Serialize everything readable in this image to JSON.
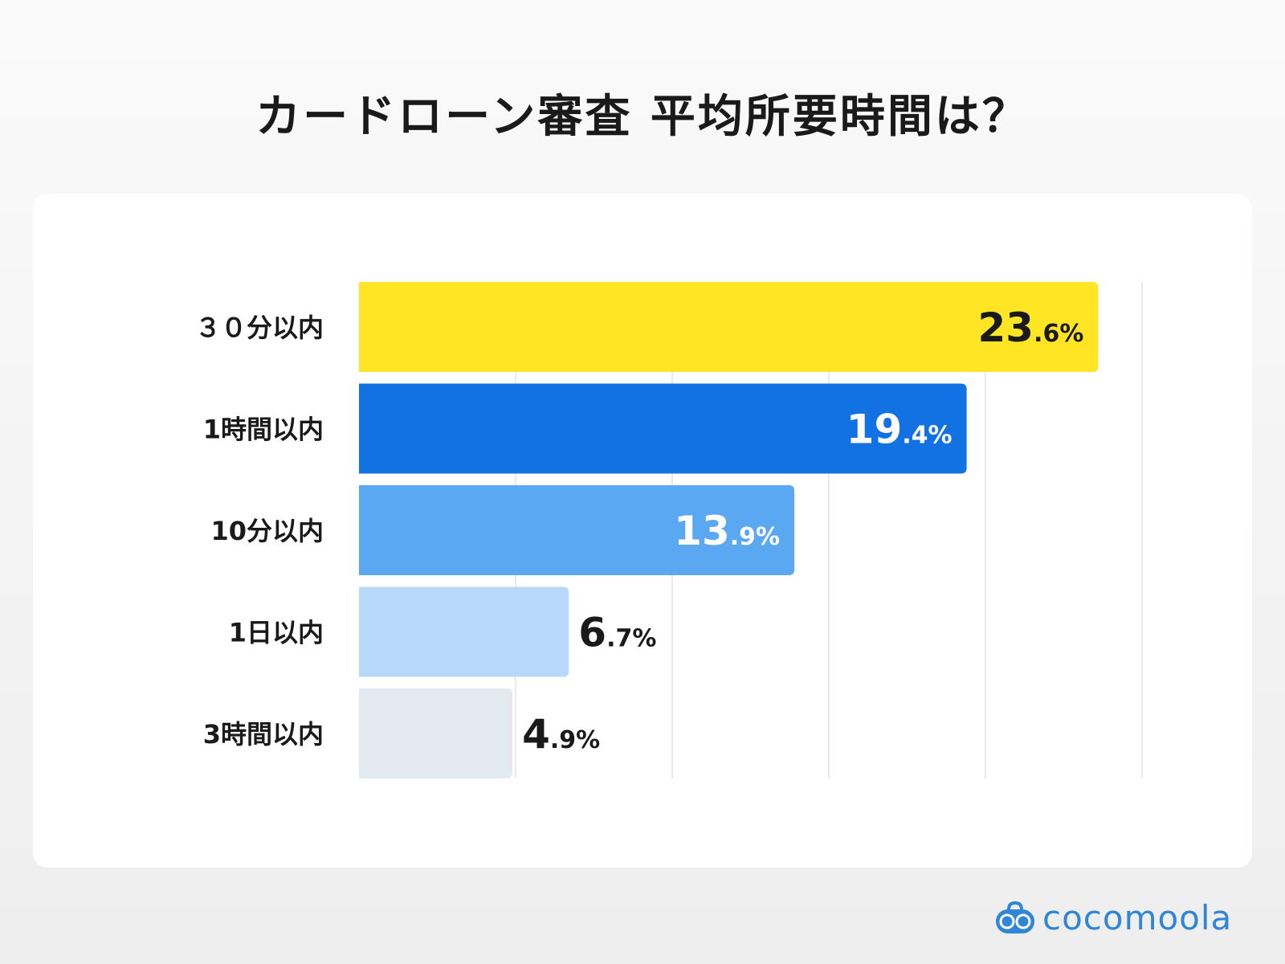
{
  "title": "カードローン審査 平均所要時間は？",
  "logo": {
    "text": "cocomoola",
    "icon": "robot-face-icon",
    "color": "#2f86d6"
  },
  "chart_data": {
    "type": "bar",
    "orientation": "horizontal",
    "title": "カードローン審査 平均所要時間は？",
    "categories": [
      "３０分以内",
      "1時間以内",
      "10分以内",
      "1日以内",
      "3時間以内"
    ],
    "values": [
      23.6,
      19.4,
      13.9,
      6.7,
      4.9
    ],
    "value_labels": [
      {
        "int": "23",
        "dec": ".6%"
      },
      {
        "int": "19",
        "dec": ".4%"
      },
      {
        "int": "13",
        "dec": ".9%"
      },
      {
        "int": "6",
        "dec": ".7%"
      },
      {
        "int": "4",
        "dec": ".9%"
      }
    ],
    "colors": [
      "#FFE524",
      "#1271E3",
      "#5BA8F2",
      "#B8D8FA",
      "#E4EAF2"
    ],
    "label_colors": [
      "#1a1a1a",
      "#ffffff",
      "#ffffff",
      "#1a1a1a",
      "#1a1a1a"
    ],
    "xlim": [
      0,
      25
    ],
    "grid_step": 5,
    "grid": true,
    "axis_ticks_shown": false
  }
}
